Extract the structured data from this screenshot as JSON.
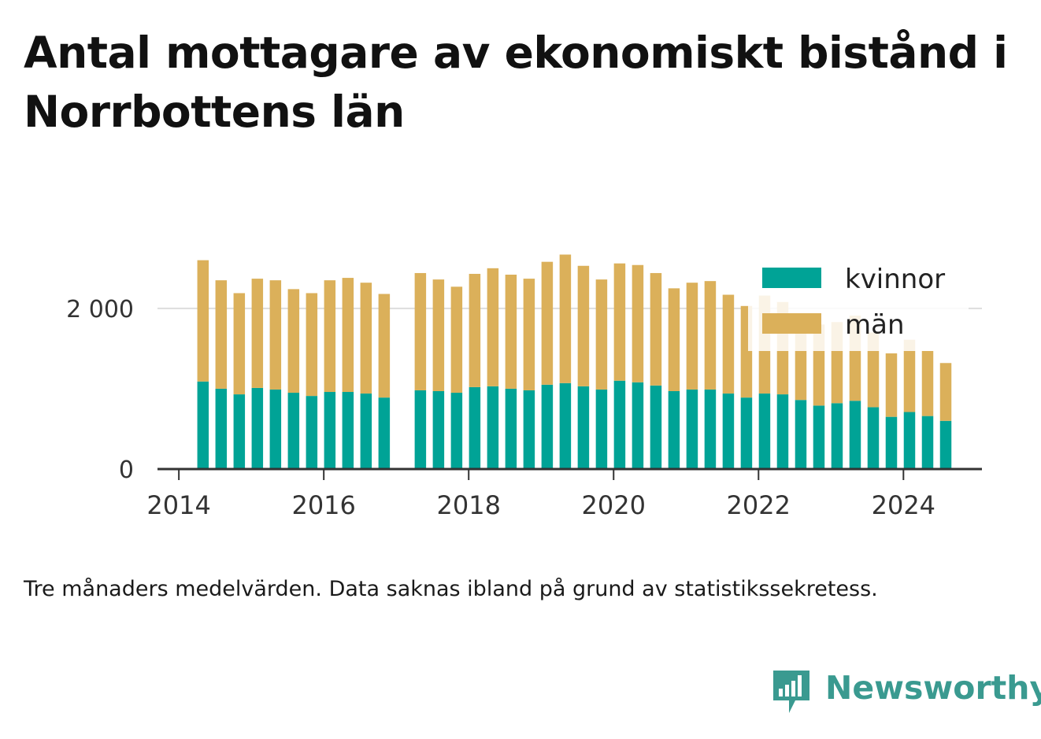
{
  "title": "Antal mottagare av ekonomiskt bistånd i Norrbottens län",
  "caption": "Tre månaders medelvärden. Data saknas ibland på grund av statistikssekretess.",
  "brand": {
    "name": "Newsworthy",
    "icon": "newsworthy-logo-icon"
  },
  "colors": {
    "kvinnor": "#00a396",
    "man": "#dbb05a",
    "axis": "#333333",
    "grid": "#dddddd"
  },
  "chart_data": {
    "type": "bar",
    "stacked": true,
    "x": [
      "2014-05",
      "2014-08",
      "2014-11",
      "2015-02",
      "2015-05",
      "2015-08",
      "2015-11",
      "2016-02",
      "2016-05",
      "2016-08",
      "2016-11",
      "2017-05",
      "2017-08",
      "2017-11",
      "2018-02",
      "2018-05",
      "2018-08",
      "2018-11",
      "2019-02",
      "2019-05",
      "2019-08",
      "2019-11",
      "2020-02",
      "2020-05",
      "2020-08",
      "2020-11",
      "2021-02",
      "2021-05",
      "2021-08",
      "2021-11",
      "2022-02",
      "2022-05",
      "2022-08",
      "2022-11",
      "2023-02",
      "2023-05",
      "2023-08",
      "2023-11",
      "2024-02",
      "2024-05",
      "2024-08"
    ],
    "series": [
      {
        "name": "kvinnor",
        "values": [
          1090,
          1000,
          930,
          1010,
          990,
          950,
          910,
          960,
          960,
          940,
          890,
          980,
          970,
          950,
          1020,
          1030,
          1000,
          980,
          1050,
          1070,
          1030,
          990,
          1100,
          1080,
          1040,
          970,
          990,
          990,
          940,
          890,
          940,
          930,
          860,
          790,
          820,
          850,
          770,
          650,
          710,
          660,
          600
        ]
      },
      {
        "name": "män",
        "values": [
          1510,
          1350,
          1260,
          1360,
          1360,
          1290,
          1280,
          1390,
          1420,
          1380,
          1290,
          1460,
          1390,
          1320,
          1410,
          1470,
          1420,
          1390,
          1530,
          1600,
          1500,
          1370,
          1460,
          1460,
          1400,
          1280,
          1330,
          1350,
          1230,
          1140,
          1220,
          1150,
          1050,
          1010,
          1010,
          1060,
          930,
          790,
          900,
          810,
          720
        ]
      }
    ],
    "xticks": [
      "2014",
      "2016",
      "2018",
      "2020",
      "2022",
      "2024"
    ],
    "yticks": [
      {
        "value": 0,
        "label": "0"
      },
      {
        "value": 2000,
        "label": "2 000"
      }
    ],
    "ylim": [
      0,
      2900
    ],
    "xlim": [
      "2013-09-15",
      "2025-02-01"
    ],
    "grid": "horizontal, gridline at 2 000 only",
    "legend_position": "top-right",
    "xlabel": "",
    "ylabel": ""
  }
}
